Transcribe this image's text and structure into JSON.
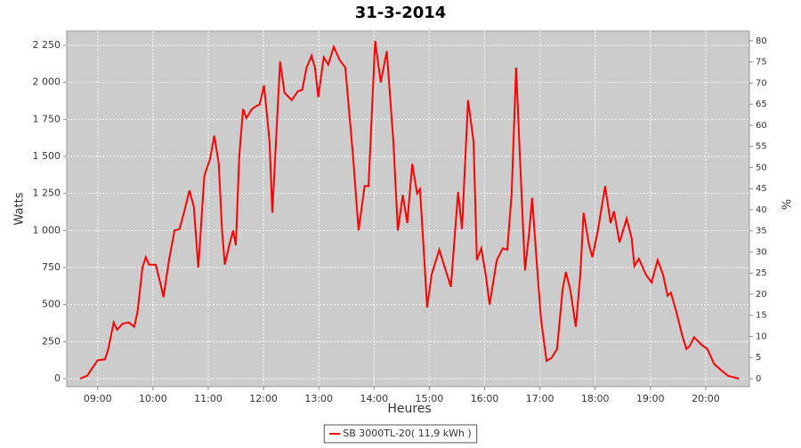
{
  "chart_data": {
    "type": "line",
    "title": "31-3-2014",
    "y_label": "Watts",
    "y2_label": "%",
    "x_label": "Heures",
    "x": [
      8.68,
      8.81,
      8.9,
      9.0,
      9.13,
      9.19,
      9.29,
      9.35,
      9.45,
      9.56,
      9.66,
      9.72,
      9.81,
      9.87,
      9.93,
      10.05,
      10.13,
      10.19,
      10.29,
      10.39,
      10.48,
      10.56,
      10.66,
      10.74,
      10.82,
      10.93,
      11.03,
      11.11,
      11.19,
      11.25,
      11.3,
      11.38,
      11.45,
      11.5,
      11.56,
      11.63,
      11.69,
      11.79,
      11.87,
      11.93,
      12.01,
      12.11,
      12.16,
      12.3,
      12.38,
      12.51,
      12.62,
      12.7,
      12.78,
      12.87,
      12.93,
      12.99,
      13.09,
      13.17,
      13.27,
      13.38,
      13.48,
      13.62,
      13.72,
      13.83,
      13.9,
      14.02,
      14.12,
      14.23,
      14.35,
      14.43,
      14.52,
      14.6,
      14.69,
      14.78,
      14.83,
      14.91,
      14.96,
      15.04,
      15.12,
      15.18,
      15.28,
      15.39,
      15.52,
      15.59,
      15.7,
      15.8,
      15.86,
      15.94,
      16.02,
      16.09,
      16.22,
      16.33,
      16.41,
      16.49,
      16.57,
      16.65,
      16.73,
      16.81,
      16.86,
      16.94,
      17.02,
      17.12,
      17.21,
      17.31,
      17.41,
      17.47,
      17.55,
      17.65,
      17.73,
      17.79,
      17.89,
      17.95,
      18.05,
      18.18,
      18.28,
      18.34,
      18.44,
      18.57,
      18.66,
      18.71,
      18.79,
      18.92,
      19.02,
      19.13,
      19.23,
      19.31,
      19.37,
      19.47,
      19.57,
      19.65,
      19.71,
      19.79,
      19.92,
      20.03,
      20.15,
      20.27,
      20.4,
      20.6
    ],
    "series": [
      {
        "name": "SB 3000TL-20( 11,9 kWh )",
        "color": "#ff0000",
        "values": [
          0,
          20,
          70,
          125,
          130,
          200,
          380,
          330,
          370,
          380,
          350,
          450,
          750,
          820,
          770,
          770,
          650,
          550,
          800,
          1000,
          1010,
          1120,
          1270,
          1160,
          750,
          1370,
          1480,
          1640,
          1450,
          1000,
          770,
          900,
          1000,
          900,
          1500,
          1820,
          1760,
          1820,
          1840,
          1850,
          1980,
          1600,
          1120,
          2140,
          1930,
          1880,
          1940,
          1950,
          2100,
          2180,
          2100,
          1900,
          2170,
          2120,
          2240,
          2150,
          2100,
          1500,
          1000,
          1300,
          1300,
          2280,
          2000,
          2210,
          1600,
          1000,
          1240,
          1050,
          1450,
          1250,
          1280,
          800,
          480,
          700,
          800,
          870,
          750,
          620,
          1260,
          1010,
          1880,
          1600,
          800,
          880,
          700,
          500,
          800,
          880,
          870,
          1250,
          2100,
          1400,
          730,
          1000,
          1220,
          800,
          400,
          120,
          140,
          200,
          600,
          720,
          600,
          350,
          700,
          1120,
          900,
          820,
          1000,
          1300,
          1050,
          1130,
          920,
          1080,
          950,
          760,
          810,
          700,
          650,
          800,
          700,
          560,
          580,
          450,
          300,
          200,
          220,
          280,
          230,
          200,
          100,
          60,
          20,
          0
        ]
      }
    ],
    "xlim": [
      8.44,
      20.79
    ],
    "xticks": [
      {
        "value": 9,
        "label": "09:00"
      },
      {
        "value": 10,
        "label": "10:00"
      },
      {
        "value": 11,
        "label": "11:00"
      },
      {
        "value": 12,
        "label": "12:00"
      },
      {
        "value": 13,
        "label": "13:00"
      },
      {
        "value": 14,
        "label": "14:00"
      },
      {
        "value": 15,
        "label": "15:00"
      },
      {
        "value": 16,
        "label": "16:00"
      },
      {
        "value": 17,
        "label": "17:00"
      },
      {
        "value": 18,
        "label": "18:00"
      },
      {
        "value": 19,
        "label": "19:00"
      },
      {
        "value": 20,
        "label": "20:00"
      }
    ],
    "ylim": [
      -54,
      2346
    ],
    "yticks": [
      0,
      250,
      500,
      750,
      {
        "value": 1000,
        "label": "1 000"
      },
      {
        "value": 1250,
        "label": "1 250"
      },
      {
        "value": 1500,
        "label": "1 500"
      },
      {
        "value": 1750,
        "label": "1 750"
      },
      {
        "value": 2000,
        "label": "2 000"
      },
      {
        "value": 2250,
        "label": "2 250"
      }
    ],
    "y2lim": [
      -1.9,
      82.3
    ],
    "y2ticks": [
      0,
      5,
      10,
      15,
      20,
      25,
      30,
      35,
      40,
      45,
      50,
      55,
      60,
      65,
      70,
      75,
      80
    ],
    "grid": true,
    "legend": "bottom"
  }
}
